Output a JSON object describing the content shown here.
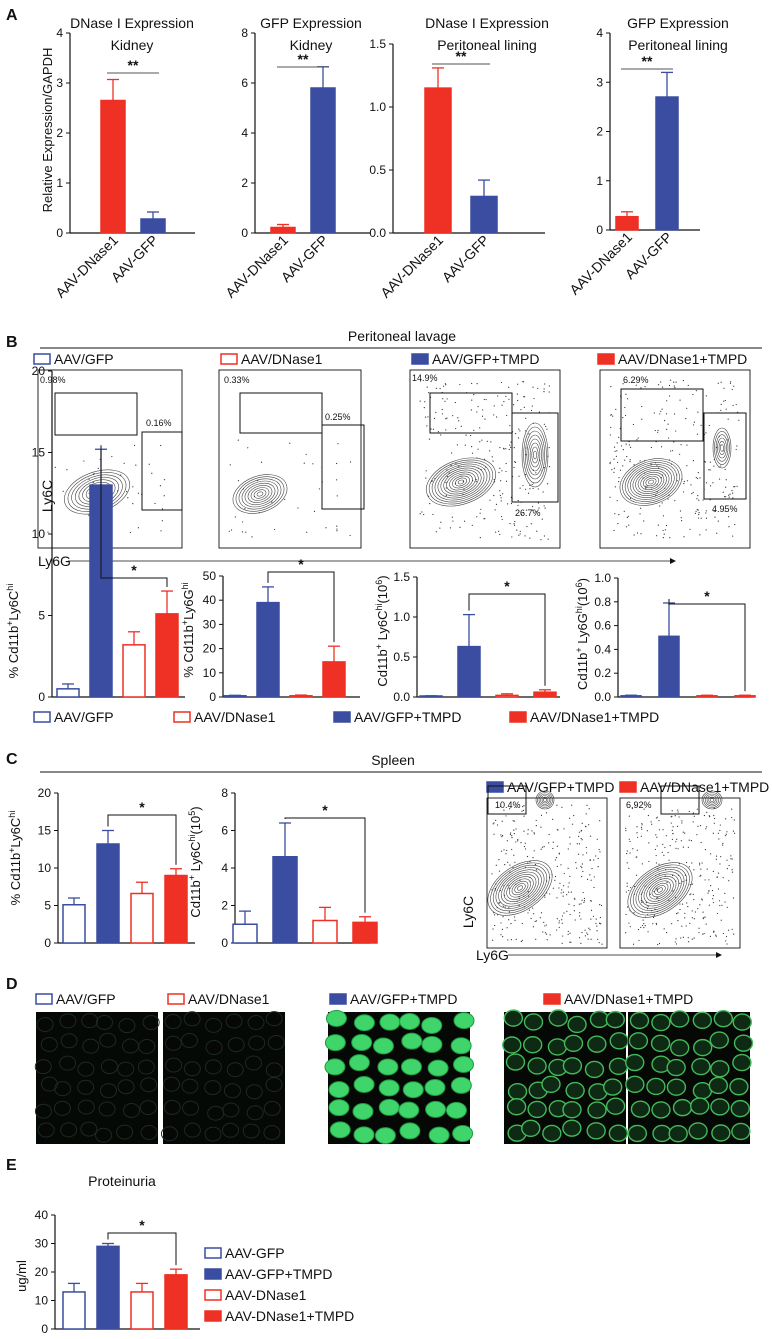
{
  "colors": {
    "red": "#EE3124",
    "blue": "#3A4DA0",
    "dark": "#111111"
  },
  "panel_a": {
    "letter": "A",
    "shared_ylabel": "Relative Expression/GAPDH",
    "categories": [
      "AAV-DNase1",
      "AAV-GFP"
    ],
    "charts": [
      {
        "title1": "DNase I Expression",
        "title2": "Kidney",
        "sig": "**",
        "ticks": [
          "0",
          "1",
          "2",
          "3",
          "4"
        ]
      },
      {
        "title1": "GFP Expression",
        "title2": "Kidney",
        "sig": "**",
        "ticks": [
          "0",
          "2",
          "4",
          "6",
          "8"
        ]
      },
      {
        "title1": "DNase I Expression",
        "title2": "Peritoneal lining",
        "sig": "**",
        "ticks": [
          "0.0",
          "0.5",
          "1.0",
          "1.5"
        ]
      },
      {
        "title1": "GFP Expression",
        "title2": "Peritoneal lining",
        "sig": "**",
        "ticks": [
          "0",
          "1",
          "2",
          "3",
          "4"
        ]
      }
    ]
  },
  "panel_b": {
    "letter": "B",
    "section": "Peritoneal lavage",
    "legend": [
      "AAV/GFP",
      "AAV/DNase1",
      "AAV/GFP+TMPD",
      "AAV/DNase1+TMPD"
    ],
    "flow_ylabel": "Ly6C",
    "flow_xlabel": "Ly6G",
    "flow": [
      {
        "gate_ly6c": "0.98%",
        "gate_ly6g": "0.16%"
      },
      {
        "gate_ly6c": "0.33%",
        "gate_ly6g": "0.25%"
      },
      {
        "gate_ly6c": "14.9%",
        "gate_ly6g": "26.7%"
      },
      {
        "gate_ly6c": "6.29%",
        "gate_ly6g": "4.95%"
      }
    ],
    "bar_ylabels": [
      {
        "main": "% Cd11b",
        "parts": [
          [
            "% Cd11b",
            ""
          ],
          [
            "+",
            "sup"
          ],
          [
            "Ly6C",
            ""
          ],
          [
            "hi",
            "sup"
          ]
        ]
      },
      {
        "main": "% Cd11b",
        "parts": [
          [
            "% Cd11b",
            ""
          ],
          [
            "+",
            "sup"
          ],
          [
            "Ly6G",
            ""
          ],
          [
            "hi",
            "sup"
          ]
        ]
      },
      {
        "main": "Cd11b",
        "parts": [
          [
            "Cd11b",
            ""
          ],
          [
            "+",
            "sup"
          ],
          [
            " Ly6C",
            ""
          ],
          [
            "hi",
            "sup"
          ],
          [
            "(10",
            ""
          ],
          [
            "6",
            "sup"
          ],
          [
            ")",
            ""
          ]
        ]
      },
      {
        "main": "Cd11b",
        "parts": [
          [
            "Cd11b",
            ""
          ],
          [
            "+",
            "sup"
          ],
          [
            " Ly6G",
            ""
          ],
          [
            "hi",
            "sup"
          ],
          [
            "(10",
            ""
          ],
          [
            "6",
            "sup"
          ],
          [
            ")",
            ""
          ]
        ]
      }
    ],
    "bar_ticks": [
      [
        "0",
        "5",
        "10",
        "15",
        "20"
      ],
      [
        "0",
        "10",
        "20",
        "30",
        "40",
        "50"
      ],
      [
        "0.0",
        "0.5",
        "1.0",
        "1.5"
      ],
      [
        "0.0",
        "0.2",
        "0.4",
        "0.6",
        "0.8",
        "1.0"
      ]
    ],
    "sig": [
      "*",
      "*",
      "*",
      "*"
    ]
  },
  "panel_c": {
    "letter": "C",
    "section": "Spleen",
    "ylabels": [
      {
        "parts": [
          [
            "% Cd11b",
            ""
          ],
          [
            "+",
            "sup"
          ],
          [
            "Ly6C",
            ""
          ],
          [
            "hi",
            "sup"
          ]
        ]
      },
      {
        "parts": [
          [
            "Cd11b",
            ""
          ],
          [
            "+",
            "sup"
          ],
          [
            " Ly6C",
            ""
          ],
          [
            "hi",
            "sup"
          ],
          [
            "(10",
            ""
          ],
          [
            "5",
            "sup"
          ],
          [
            ")",
            ""
          ]
        ]
      }
    ],
    "ticks": [
      [
        "0",
        "5",
        "10",
        "15",
        "20"
      ],
      [
        "0",
        "2",
        "4",
        "6",
        "8"
      ]
    ],
    "sig": [
      "*",
      "*"
    ],
    "flow_legend": [
      "AAV/GFP+TMPD",
      "AAV/DNase1+TMPD"
    ],
    "flow_gates": [
      "10.4%",
      "6.92%"
    ],
    "flow_ylabel": "Ly6C",
    "flow_xlabel": "Ly6G"
  },
  "panel_d": {
    "letter": "D",
    "legend": [
      "AAV/GFP",
      "AAV/DNase1",
      "AAV/GFP+TMPD",
      "AAV/DNase1+TMPD"
    ]
  },
  "panel_e": {
    "letter": "E",
    "title": "Proteinuria",
    "ylabel": "ug/ml",
    "ticks": [
      "0",
      "10",
      "20",
      "30",
      "40"
    ],
    "sig": "*",
    "legend": [
      "AAV-GFP",
      "AAV-GFP+TMPD",
      "AAV-DNase1",
      "AAV-DNase1+TMPD"
    ]
  },
  "chart_data": [
    {
      "type": "bar",
      "title": "DNase I Expression Kidney",
      "ylabel": "Relative Expression/GAPDH",
      "categories": [
        "AAV-DNase1",
        "AAV-GFP"
      ],
      "values": [
        2.65,
        0.28
      ],
      "errors": [
        0.42,
        0.14
      ],
      "ylim": [
        0,
        4
      ],
      "styles": [
        "solid-red",
        "solid-blue"
      ],
      "sig": {
        "between": [
          0,
          1
        ],
        "label": "**"
      }
    },
    {
      "type": "bar",
      "title": "GFP Expression Kidney",
      "categories": [
        "AAV-DNase1",
        "AAV-GFP"
      ],
      "values": [
        0.22,
        5.8
      ],
      "errors": [
        0.12,
        0.85
      ],
      "ylim": [
        0,
        8
      ],
      "styles": [
        "solid-red",
        "solid-blue"
      ],
      "sig": {
        "between": [
          0,
          1
        ],
        "label": "**"
      }
    },
    {
      "type": "bar",
      "title": "DNase I Expression Peritoneal lining",
      "categories": [
        "AAV-DNase1",
        "AAV-GFP"
      ],
      "values": [
        1.15,
        0.29
      ],
      "errors": [
        0.16,
        0.13
      ],
      "ylim": [
        0,
        1.5
      ],
      "styles": [
        "solid-red",
        "solid-blue"
      ],
      "sig": {
        "between": [
          0,
          1
        ],
        "label": "**"
      }
    },
    {
      "type": "bar",
      "title": "GFP Expression Peritoneal lining",
      "categories": [
        "AAV-DNase1",
        "AAV-GFP"
      ],
      "values": [
        0.27,
        2.7
      ],
      "errors": [
        0.1,
        0.5
      ],
      "ylim": [
        0,
        4
      ],
      "styles": [
        "solid-red",
        "solid-blue"
      ],
      "sig": {
        "between": [
          0,
          1
        ],
        "label": "**"
      }
    },
    {
      "type": "bar",
      "ylabel": "% Cd11b+Ly6Chi",
      "categories": [
        "AAV/GFP",
        "AAV/GFP+TMPD",
        "AAV/DNase1",
        "AAV/DNase1+TMPD"
      ],
      "values": [
        0.5,
        13,
        3.2,
        5.1
      ],
      "errors": [
        0.3,
        2.2,
        0.8,
        1.4
      ],
      "ylim": [
        0,
        20
      ],
      "styles": [
        "open-blue",
        "solid-blue",
        "open-red",
        "solid-red"
      ],
      "sig": {
        "between": [
          1,
          3
        ],
        "label": "*"
      }
    },
    {
      "type": "bar",
      "ylabel": "% Cd11b+Ly6Ghi",
      "categories": [
        "AAV/GFP",
        "AAV/GFP+TMPD",
        "AAV/DNase1",
        "AAV/DNase1+TMPD"
      ],
      "values": [
        0.5,
        39,
        0.5,
        14.5
      ],
      "errors": [
        0.2,
        6.5,
        0.3,
        6.5
      ],
      "ylim": [
        0,
        50
      ],
      "styles": [
        "open-blue",
        "solid-blue",
        "open-red",
        "solid-red"
      ],
      "sig": {
        "between": [
          1,
          3
        ],
        "label": "*"
      }
    },
    {
      "type": "bar",
      "ylabel": "Cd11b+ Ly6Chi(10^6)",
      "categories": [
        "AAV/GFP",
        "AAV/GFP+TMPD",
        "AAV/DNase1",
        "AAV/DNase1+TMPD"
      ],
      "values": [
        0.01,
        0.63,
        0.02,
        0.06
      ],
      "errors": [
        0.005,
        0.4,
        0.02,
        0.03
      ],
      "ylim": [
        0,
        1.5
      ],
      "styles": [
        "open-blue",
        "solid-blue",
        "open-red",
        "solid-red"
      ],
      "sig": {
        "between": [
          1,
          3
        ],
        "label": "*"
      }
    },
    {
      "type": "bar",
      "ylabel": "Cd11b+ Ly6Ghi(10^6)",
      "categories": [
        "AAV/GFP",
        "AAV/GFP+TMPD",
        "AAV/DNase1",
        "AAV/DNase1+TMPD"
      ],
      "values": [
        0.01,
        0.51,
        0.01,
        0.01
      ],
      "errors": [
        0.005,
        0.28,
        0.005,
        0.005
      ],
      "ylim": [
        0,
        1.0
      ],
      "styles": [
        "open-blue",
        "solid-blue",
        "open-red",
        "solid-red"
      ],
      "sig": {
        "between": [
          1,
          3
        ],
        "label": "*"
      }
    },
    {
      "type": "bar",
      "ylabel": "% Cd11b+Ly6Chi",
      "categories": [
        "AAV/GFP",
        "AAV/GFP+TMPD",
        "AAV/DNase1",
        "AAV/DNase1+TMPD"
      ],
      "values": [
        5.1,
        13.2,
        6.6,
        9
      ],
      "errors": [
        0.9,
        1.8,
        1.5,
        0.9
      ],
      "ylim": [
        0,
        20
      ],
      "styles": [
        "open-blue",
        "solid-blue",
        "open-red",
        "solid-red"
      ],
      "sig": {
        "between": [
          1,
          3
        ],
        "label": "*"
      }
    },
    {
      "type": "bar",
      "ylabel": "Cd11b+ Ly6Chi(10^5)",
      "categories": [
        "AAV/GFP",
        "AAV/GFP+TMPD",
        "AAV/DNase1",
        "AAV/DNase1+TMPD"
      ],
      "values": [
        1,
        4.6,
        1.2,
        1.1
      ],
      "errors": [
        0.7,
        1.8,
        0.7,
        0.3
      ],
      "ylim": [
        0,
        8
      ],
      "styles": [
        "open-blue",
        "solid-blue",
        "open-red",
        "solid-red"
      ],
      "sig": {
        "between": [
          1,
          3
        ],
        "label": "*"
      }
    },
    {
      "type": "bar",
      "title": "Proteinuria",
      "ylabel": "ug/ml",
      "categories": [
        "AAV-GFP",
        "AAV-GFP+TMPD",
        "AAV-DNase1",
        "AAV-DNase1+TMPD"
      ],
      "values": [
        13,
        29,
        13,
        19
      ],
      "errors": [
        3,
        1,
        3,
        2
      ],
      "ylim": [
        0,
        40
      ],
      "styles": [
        "open-blue",
        "solid-blue",
        "open-red",
        "solid-red"
      ],
      "sig": {
        "between": [
          1,
          3
        ],
        "label": "*"
      }
    }
  ]
}
